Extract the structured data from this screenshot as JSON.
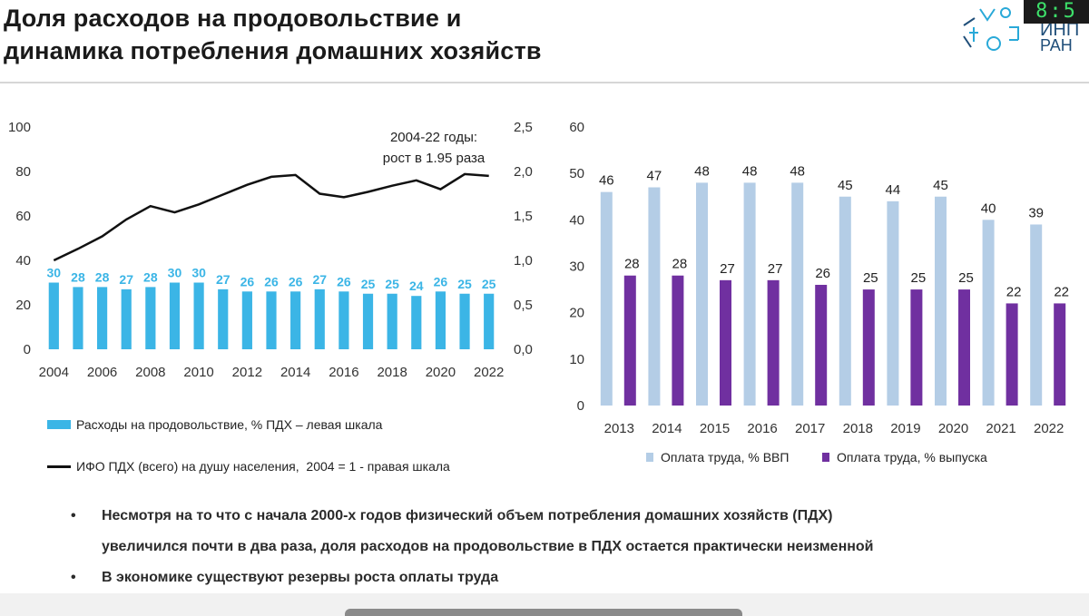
{
  "header": {
    "title_line1": "Доля расходов на продовольствие и",
    "title_line2": "динамика потребления домашних хозяйств",
    "logo_text_1": "ИНП",
    "logo_text_2": "РАН",
    "clock_text": "8:5"
  },
  "chart_data": [
    {
      "type": "bar+line",
      "title": "",
      "annotation": [
        "2004-22 годы:",
        "рост в 1.95 раза"
      ],
      "x_ticks": [
        "2004",
        "2006",
        "2008",
        "2010",
        "2012",
        "2014",
        "2016",
        "2018",
        "2020",
        "2022"
      ],
      "years": [
        2004,
        2005,
        2006,
        2007,
        2008,
        2009,
        2010,
        2011,
        2012,
        2013,
        2014,
        2015,
        2016,
        2017,
        2018,
        2019,
        2020,
        2021,
        2022
      ],
      "left_axis": {
        "ylim": [
          0,
          100
        ],
        "ticks": [
          "0",
          "20",
          "40",
          "60",
          "80",
          "100"
        ]
      },
      "right_axis": {
        "ylim": [
          0,
          2.5
        ],
        "ticks": [
          "0,0",
          "0,5",
          "1,0",
          "1,5",
          "2,0",
          "2,5"
        ]
      },
      "series": [
        {
          "name": "Расходы на продовольствие, % ПДХ – левая шкала",
          "kind": "bar",
          "axis": "left",
          "color": "#3bb5e6",
          "values": [
            30,
            28,
            28,
            27,
            28,
            30,
            30,
            27,
            26,
            26,
            26,
            27,
            26,
            25,
            25,
            24,
            26,
            25,
            25
          ]
        },
        {
          "name": "ИФО ПДХ (всего) на душу населения,  2004 = 1 - правая шкала",
          "kind": "line",
          "axis": "right",
          "color": "#111111",
          "values": [
            1.0,
            1.13,
            1.27,
            1.46,
            1.61,
            1.54,
            1.63,
            1.74,
            1.85,
            1.94,
            1.96,
            1.75,
            1.71,
            1.77,
            1.84,
            1.9,
            1.8,
            1.97,
            1.95
          ]
        }
      ]
    },
    {
      "type": "bar",
      "categories": [
        "2013",
        "2014",
        "2015",
        "2016",
        "2017",
        "2018",
        "2019",
        "2020",
        "2021",
        "2022"
      ],
      "ylim": [
        0,
        60
      ],
      "y_ticks": [
        "0",
        "10",
        "20",
        "30",
        "40",
        "50",
        "60"
      ],
      "series": [
        {
          "name": "Оплата труда, % ВВП",
          "color": "#b4cde6",
          "values": [
            46,
            47,
            48,
            48,
            48,
            45,
            44,
            45,
            40,
            39
          ]
        },
        {
          "name": "Оплата труда, % выпуска",
          "color": "#7030a0",
          "values": [
            28,
            28,
            27,
            27,
            26,
            25,
            25,
            25,
            22,
            22
          ]
        }
      ]
    }
  ],
  "bullets": [
    {
      "mark": "•",
      "text": "Несмотря на то что с начала 2000-х годов физический объем потребления домашних хозяйств (ПДХ)"
    },
    {
      "mark": "",
      "text": "увеличился почти в два раза, доля расходов на продовольствие в ПДХ остается практически неизменной"
    },
    {
      "mark": "•",
      "text": "В экономике существуют резервы роста оплаты труда"
    }
  ]
}
